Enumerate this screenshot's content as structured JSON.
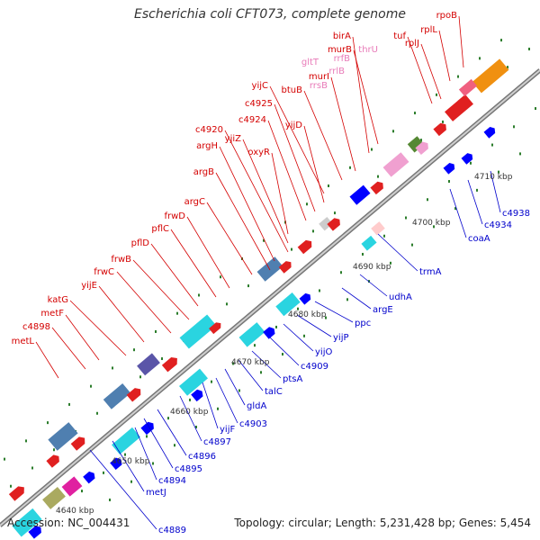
{
  "title": "Escherichia coli CFT073, complete genome",
  "footer": {
    "accession": "Accession: NC_004431",
    "topology": "Topology: circular; Length: 5,231,428 bp; Genes: 5,454"
  },
  "colors": {
    "backbone": "#9a9a9a",
    "tick": "#2c7d2c",
    "label_upper": "#d40000",
    "label_lower": "#0000cc",
    "label_rna": "#e87ab8",
    "label_kbp": "#333333"
  },
  "kbp_labels": [
    "4640 kbp",
    "4650 kbp",
    "4660 kbp",
    "4670 kbp",
    "4680 kbp",
    "4690 kbp",
    "4700 kbp",
    "4710 kbp"
  ],
  "upper_labels": [
    "metL",
    "c4898",
    "metF",
    "katG",
    "yijE",
    "frwC",
    "frwB",
    "pflD",
    "pflC",
    "frwD",
    "argC",
    "argB",
    "argH",
    "c4920",
    "yjiZ",
    "c4924",
    "oxyR",
    "c4925",
    "yijD",
    "yijC",
    "btuB",
    "murI",
    "birA",
    "murB",
    "tuf",
    "rplJ",
    "rplL",
    "rpoB"
  ],
  "rna_labels": [
    "gltT",
    "rrsB",
    "rrlB",
    "rrfB",
    "thrU"
  ],
  "lower_labels": [
    "c4889",
    "metJ",
    "c4894",
    "c4895",
    "c4896",
    "c4897",
    "yijF",
    "c4903",
    "gldA",
    "talC",
    "ptsA",
    "c4909",
    "yijO",
    "yijP",
    "ppc",
    "argE",
    "udhA",
    "trmA",
    "coaA",
    "c4934",
    "c4938"
  ]
}
